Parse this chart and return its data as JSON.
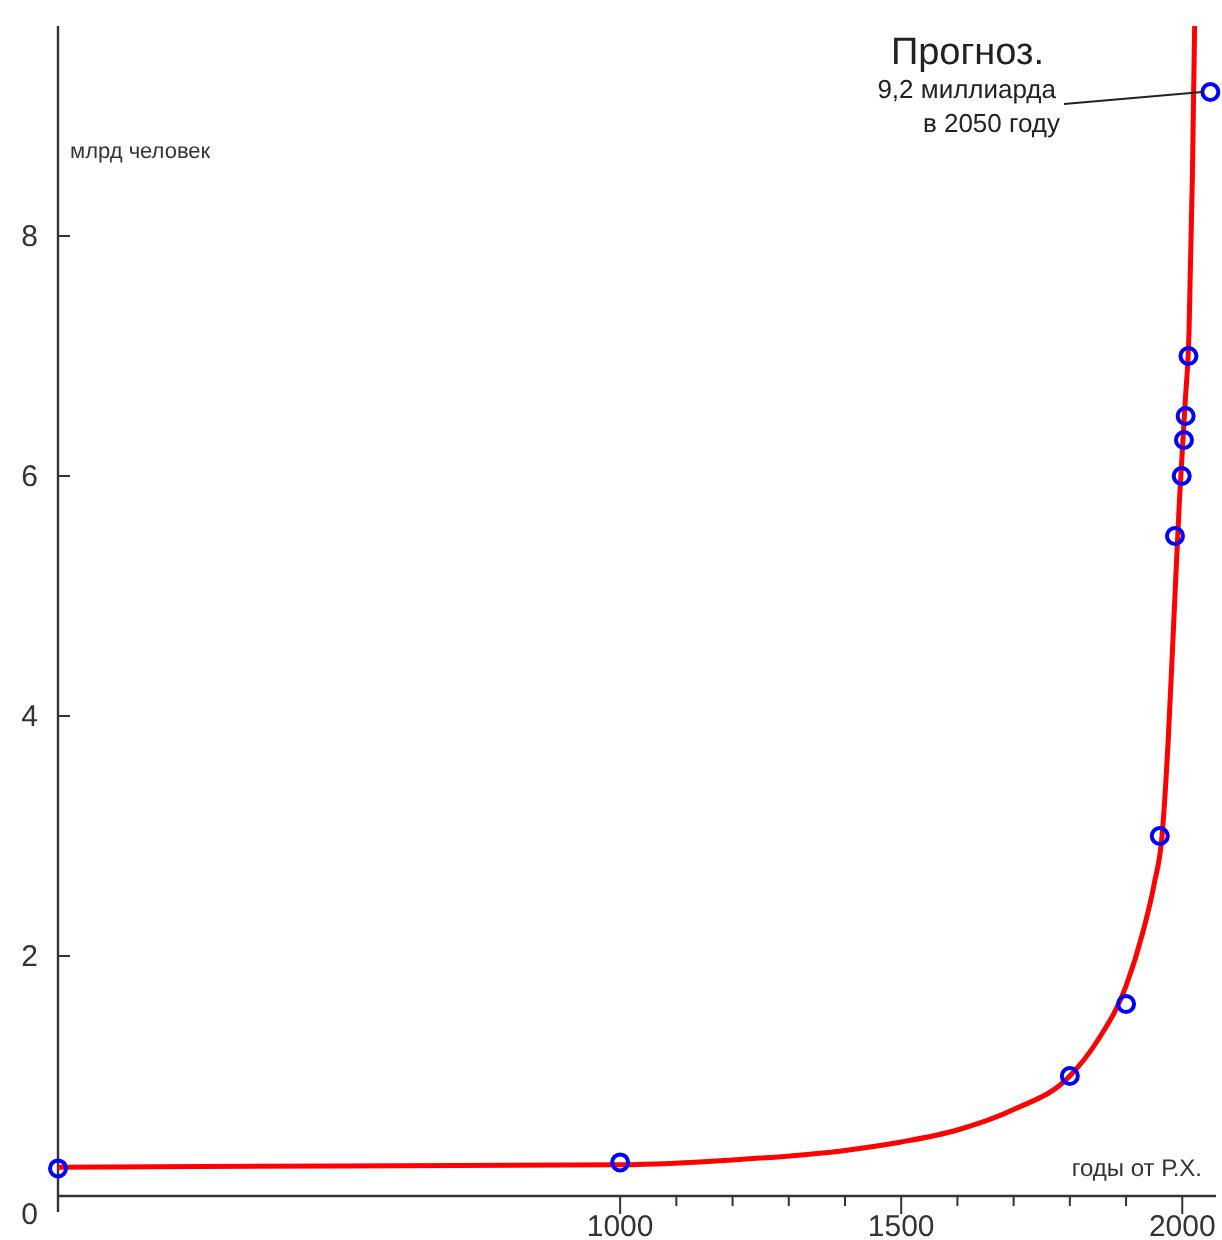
{
  "chart_data": {
    "type": "line",
    "xlabel": "годы от Р.Х.",
    "ylabel": "млрд человек",
    "xlim": [
      0,
      2060
    ],
    "ylim": [
      0,
      9.75
    ],
    "xticks": [
      1000,
      {
        "value": 1100,
        "label": null
      },
      {
        "value": 1200,
        "label": null
      },
      {
        "value": 1300,
        "label": null
      },
      {
        "value": 1400,
        "label": null
      },
      1500,
      {
        "value": 1600,
        "label": null
      },
      {
        "value": 1700,
        "label": null
      },
      {
        "value": 1800,
        "label": null
      },
      {
        "value": 1900,
        "label": null
      },
      2000
    ],
    "yticks": [
      0,
      2,
      4,
      6,
      8
    ],
    "series": [
      {
        "color": "#ff0000",
        "marker": "none",
        "x": [
          0,
          500,
          1000,
          1200,
          1400,
          1500,
          1600,
          1700,
          1800,
          1850,
          1900,
          1930,
          1950,
          1964,
          1975,
          1985,
          1995,
          2005,
          2012,
          2018,
          2022
        ],
        "values": [
          0.24,
          0.25,
          0.26,
          0.3,
          0.38,
          0.45,
          0.55,
          0.72,
          1.0,
          1.3,
          1.75,
          2.2,
          2.6,
          3.0,
          3.8,
          4.8,
          5.8,
          6.6,
          7.2,
          8.5,
          9.75
        ]
      },
      {
        "type": "scatter",
        "color": "#0000ff",
        "marker": "circle",
        "x": [
          0,
          1000,
          1800,
          1900,
          1960,
          1987,
          1999,
          2003,
          2006,
          2011,
          2050
        ],
        "values": [
          0.23,
          0.28,
          1.0,
          1.6,
          3.0,
          5.5,
          6.0,
          6.3,
          6.5,
          7.0,
          9.2
        ]
      }
    ],
    "annotations": [
      {
        "text": "Прогноз.\n9,2 миллиарда\nв 2050 году",
        "x": 2050,
        "y": 9.2
      }
    ]
  }
}
